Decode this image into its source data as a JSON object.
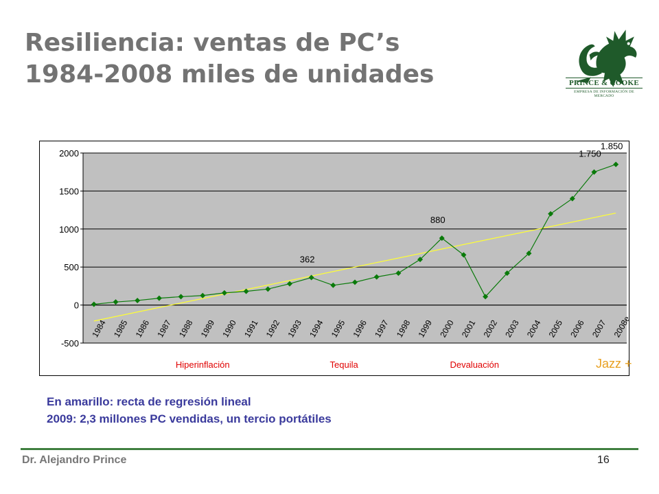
{
  "slide": {
    "title_line1": "Resiliencia: ventas de PC’s",
    "title_line2": "1984-2008  miles de unidades",
    "note_line1": "En amarillo: recta de regresión lineal",
    "note_line2": "2009: 2,3 millones PC vendidas, un tercio portátiles",
    "jazz_label": "Jazz +",
    "author": "Dr. Alejandro Prince",
    "page_number": "16",
    "title_color": "#737373",
    "note_color": "#3a3a9c",
    "footer_rule_color": "#3f7f3f"
  },
  "logo": {
    "name": "PRINCE & COOKE",
    "subtitle": "EMPRESA DE INFORMACIÓN DE MERCADO",
    "icon": "dragon-icon",
    "color": "#1f5a2a"
  },
  "chart_data": {
    "type": "line",
    "title": "",
    "xlabel": "",
    "ylabel": "",
    "ylim": [
      -500,
      2000
    ],
    "yticks": [
      -500,
      0,
      500,
      1000,
      1500,
      2000
    ],
    "grid": true,
    "categories": [
      "1984",
      "1985",
      "1986",
      "1987",
      "1988",
      "1989",
      "1990",
      "1991",
      "1992",
      "1993",
      "1994",
      "1995",
      "1996",
      "1997",
      "1998",
      "1999",
      "2000",
      "2001",
      "2002",
      "2003",
      "2004",
      "2005",
      "2006",
      "2007",
      "2008e"
    ],
    "series": [
      {
        "values": [
          10,
          40,
          60,
          90,
          110,
          125,
          160,
          180,
          210,
          280,
          362,
          260,
          300,
          370,
          420,
          600,
          880,
          660,
          110,
          420,
          680,
          1200,
          1400,
          1750,
          1850
        ],
        "color": "#0a7a0a",
        "marker": "diamond"
      }
    ],
    "regression": {
      "start": -210,
      "end": 1210,
      "color": "#ffff33"
    },
    "data_labels": [
      {
        "index": 10,
        "text": "362"
      },
      {
        "index": 16,
        "text": "880"
      },
      {
        "index": 23,
        "text": "1.750"
      },
      {
        "index": 24,
        "text": "1.850"
      }
    ],
    "annotations": [
      {
        "text": "Hiperinflación",
        "index": 5,
        "color": "#e00000"
      },
      {
        "text": "Tequila",
        "index": 11.5,
        "color": "#e00000"
      },
      {
        "text": "Devaluación",
        "index": 17.5,
        "color": "#e00000"
      }
    ],
    "plot_background": "#c0c0c0"
  }
}
